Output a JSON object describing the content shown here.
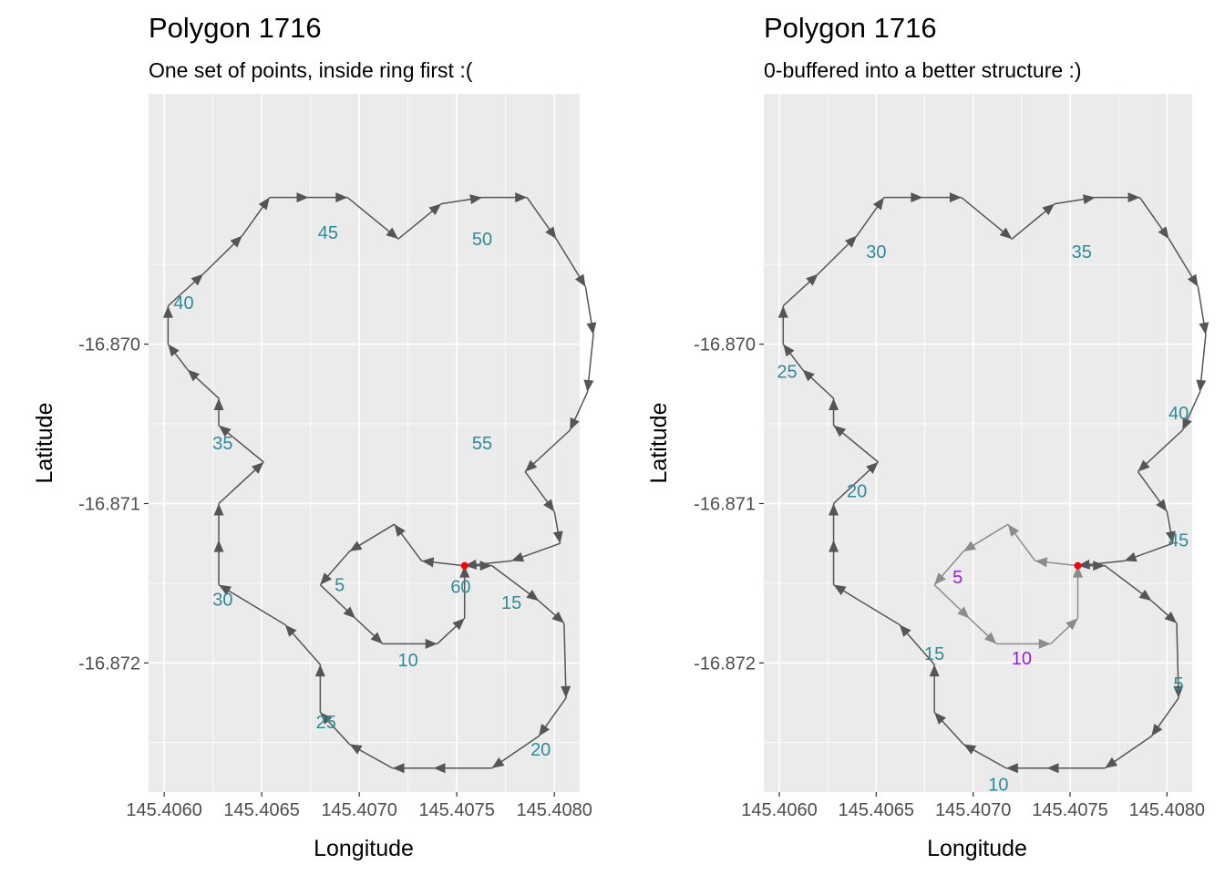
{
  "chart_data": [
    {
      "type": "line",
      "title": "Polygon 1716",
      "subtitle": "One set of points, inside ring first :(",
      "xlabel": "Longitude",
      "ylabel": "Latitude",
      "xlim": [
        145.40592,
        145.40813
      ],
      "ylim": [
        -16.87281,
        -16.86843
      ],
      "xticks": [
        "145.4060",
        "145.4065",
        "145.4070",
        "145.4075",
        "145.4080"
      ],
      "yticks": [
        "-16.870",
        "-16.871",
        "-16.872"
      ],
      "grid": true,
      "series": [
        {
          "ring": "inner",
          "color": "#555555",
          "points": [
            [
              145.40754,
              -16.87139
            ],
            [
              145.40732,
              -16.87136
            ],
            [
              145.40718,
              -16.87113
            ],
            [
              145.40695,
              -16.8713
            ],
            [
              145.4068,
              -16.87151
            ],
            [
              145.40698,
              -16.87172
            ],
            [
              145.40712,
              -16.87188
            ],
            [
              145.4074,
              -16.87188
            ],
            [
              145.40754,
              -16.87172
            ],
            [
              145.40754,
              -16.87139
            ]
          ]
        },
        {
          "ring": "outer",
          "color": "#555555",
          "points": [
            [
              145.40754,
              -16.87139
            ],
            [
              145.40768,
              -16.87139
            ],
            [
              145.40792,
              -16.87161
            ],
            [
              145.40805,
              -16.87175
            ],
            [
              145.40806,
              -16.87222
            ],
            [
              145.40792,
              -16.87246
            ],
            [
              145.40768,
              -16.87266
            ],
            [
              145.40738,
              -16.87266
            ],
            [
              145.40717,
              -16.87266
            ],
            [
              145.40695,
              -16.87251
            ],
            [
              145.4068,
              -16.87231
            ],
            [
              145.4068,
              -16.87201
            ],
            [
              145.40662,
              -16.87176
            ],
            [
              145.40628,
              -16.87151
            ],
            [
              145.40628,
              -16.87123
            ],
            [
              145.40628,
              -16.871
            ],
            [
              145.40651,
              -16.87074
            ],
            [
              145.40628,
              -16.87051
            ],
            [
              145.40628,
              -16.87034
            ],
            [
              145.40612,
              -16.87016
            ],
            [
              145.40602,
              -16.87
            ],
            [
              145.40602,
              -16.86976
            ],
            [
              145.4062,
              -16.86956
            ],
            [
              145.4064,
              -16.86932
            ],
            [
              145.40654,
              -16.86908
            ],
            [
              145.40674,
              -16.86908
            ],
            [
              145.40694,
              -16.86908
            ],
            [
              145.4072,
              -16.86934
            ],
            [
              145.40742,
              -16.86912
            ],
            [
              145.40763,
              -16.86908
            ],
            [
              145.40786,
              -16.86908
            ],
            [
              145.40801,
              -16.86934
            ],
            [
              145.40816,
              -16.86964
            ],
            [
              145.4082,
              -16.86994
            ],
            [
              145.40817,
              -16.8703
            ],
            [
              145.40808,
              -16.87054
            ],
            [
              145.40785,
              -16.8708
            ],
            [
              145.408,
              -16.87105
            ],
            [
              145.40803,
              -16.87125
            ],
            [
              145.40778,
              -16.87136
            ],
            [
              145.40754,
              -16.87139
            ]
          ]
        }
      ],
      "highlight_point": {
        "x": 145.40754,
        "y": -16.87139,
        "color": "#ff0000"
      },
      "labels": [
        {
          "text": "5",
          "x": 145.4069,
          "y": -16.87151
        },
        {
          "text": "10",
          "x": 145.40725,
          "y": -16.87198
        },
        {
          "text": "15",
          "x": 145.40778,
          "y": -16.87162
        },
        {
          "text": "20",
          "x": 145.40793,
          "y": -16.87254
        },
        {
          "text": "25",
          "x": 145.40683,
          "y": -16.87237
        },
        {
          "text": "30",
          "x": 145.4063,
          "y": -16.8716
        },
        {
          "text": "35",
          "x": 145.4063,
          "y": -16.87062
        },
        {
          "text": "40",
          "x": 145.4061,
          "y": -16.86974
        },
        {
          "text": "45",
          "x": 145.40684,
          "y": -16.8693
        },
        {
          "text": "50",
          "x": 145.40763,
          "y": -16.86934
        },
        {
          "text": "55",
          "x": 145.40763,
          "y": -16.87062
        },
        {
          "text": "60",
          "x": 145.40752,
          "y": -16.87152
        }
      ],
      "label_color": "#2e8b9a"
    },
    {
      "type": "line",
      "title": "Polygon 1716",
      "subtitle": "0-buffered into a better structure :)",
      "xlabel": "Longitude",
      "ylabel": "Latitude",
      "xlim": [
        145.40592,
        145.40813
      ],
      "ylim": [
        -16.87281,
        -16.86843
      ],
      "xticks": [
        "145.4060",
        "145.4065",
        "145.4070",
        "145.4075",
        "145.4080"
      ],
      "yticks": [
        "-16.870",
        "-16.871",
        "-16.872"
      ],
      "grid": true,
      "series": [
        {
          "ring": "outer",
          "color": "#555555",
          "points": [
            [
              145.40754,
              -16.87139
            ],
            [
              145.40768,
              -16.87139
            ],
            [
              145.40792,
              -16.87161
            ],
            [
              145.40805,
              -16.87175
            ],
            [
              145.40806,
              -16.87222
            ],
            [
              145.40792,
              -16.87246
            ],
            [
              145.40768,
              -16.87266
            ],
            [
              145.40738,
              -16.87266
            ],
            [
              145.40717,
              -16.87266
            ],
            [
              145.40695,
              -16.87251
            ],
            [
              145.4068,
              -16.87231
            ],
            [
              145.4068,
              -16.87201
            ],
            [
              145.40662,
              -16.87176
            ],
            [
              145.40628,
              -16.87151
            ],
            [
              145.40628,
              -16.87123
            ],
            [
              145.40628,
              -16.871
            ],
            [
              145.40651,
              -16.87074
            ],
            [
              145.40628,
              -16.87051
            ],
            [
              145.40628,
              -16.87034
            ],
            [
              145.40612,
              -16.87016
            ],
            [
              145.40602,
              -16.87
            ],
            [
              145.40602,
              -16.86976
            ],
            [
              145.4062,
              -16.86956
            ],
            [
              145.4064,
              -16.86932
            ],
            [
              145.40654,
              -16.86908
            ],
            [
              145.40674,
              -16.86908
            ],
            [
              145.40694,
              -16.86908
            ],
            [
              145.4072,
              -16.86934
            ],
            [
              145.40742,
              -16.86912
            ],
            [
              145.40763,
              -16.86908
            ],
            [
              145.40786,
              -16.86908
            ],
            [
              145.40801,
              -16.86934
            ],
            [
              145.40816,
              -16.86964
            ],
            [
              145.4082,
              -16.86994
            ],
            [
              145.40817,
              -16.8703
            ],
            [
              145.40808,
              -16.87054
            ],
            [
              145.40785,
              -16.8708
            ],
            [
              145.408,
              -16.87105
            ],
            [
              145.40803,
              -16.87125
            ],
            [
              145.40778,
              -16.87136
            ],
            [
              145.40754,
              -16.87139
            ]
          ]
        },
        {
          "ring": "inner",
          "color": "#8c8c8c",
          "points": [
            [
              145.40754,
              -16.87139
            ],
            [
              145.40732,
              -16.87136
            ],
            [
              145.40718,
              -16.87113
            ],
            [
              145.40695,
              -16.8713
            ],
            [
              145.4068,
              -16.87151
            ],
            [
              145.40698,
              -16.87172
            ],
            [
              145.40712,
              -16.87188
            ],
            [
              145.4074,
              -16.87188
            ],
            [
              145.40754,
              -16.87172
            ],
            [
              145.40754,
              -16.87139
            ]
          ]
        }
      ],
      "highlight_point": {
        "x": 145.40754,
        "y": -16.87139,
        "color": "#ff0000"
      },
      "labels": [
        {
          "text": "5",
          "x": 145.40806,
          "y": -16.87213,
          "color": "#2e8b9a"
        },
        {
          "text": "10",
          "x": 145.40713,
          "y": -16.87276,
          "color": "#2e8b9a"
        },
        {
          "text": "15",
          "x": 145.4068,
          "y": -16.87194,
          "color": "#2e8b9a"
        },
        {
          "text": "20",
          "x": 145.4064,
          "y": -16.87092,
          "color": "#2e8b9a"
        },
        {
          "text": "25",
          "x": 145.40604,
          "y": -16.87017,
          "color": "#2e8b9a"
        },
        {
          "text": "30",
          "x": 145.4065,
          "y": -16.86942,
          "color": "#2e8b9a"
        },
        {
          "text": "35",
          "x": 145.40756,
          "y": -16.86942,
          "color": "#2e8b9a"
        },
        {
          "text": "40",
          "x": 145.40806,
          "y": -16.87043,
          "color": "#2e8b9a"
        },
        {
          "text": "45",
          "x": 145.40806,
          "y": -16.87123,
          "color": "#2e8b9a"
        },
        {
          "text": "5",
          "x": 145.40692,
          "y": -16.87146,
          "color": "#9b1fd6"
        },
        {
          "text": "10",
          "x": 145.40725,
          "y": -16.87197,
          "color": "#9b1fd6"
        }
      ]
    }
  ]
}
